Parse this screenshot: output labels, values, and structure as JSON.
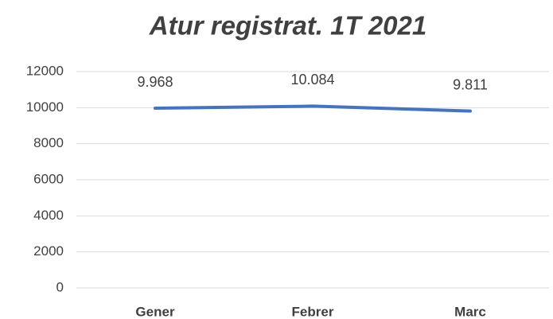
{
  "chart_data": {
    "type": "line",
    "title": "Atur registrat. 1T 2021",
    "categories": [
      "Gener",
      "Febrer",
      "Marc"
    ],
    "series": [
      {
        "name": "Atur registrat",
        "color": "#4472c4",
        "values": [
          9968,
          10084,
          9811
        ],
        "value_labels": [
          "9.968",
          "10.084",
          "9.811"
        ]
      }
    ],
    "ylim": [
      0,
      12000
    ],
    "yticks": [
      0,
      2000,
      4000,
      6000,
      8000,
      10000,
      12000
    ],
    "grid": true
  }
}
